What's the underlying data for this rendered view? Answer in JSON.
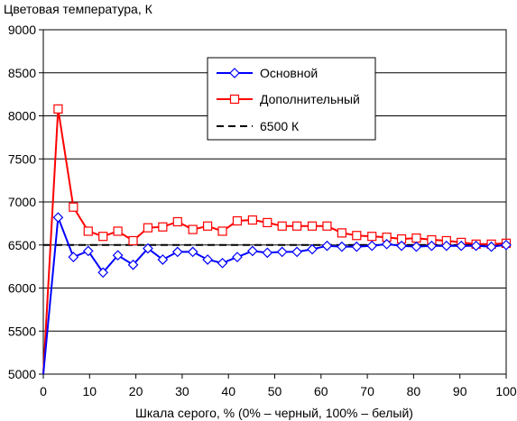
{
  "chart_data": {
    "type": "line",
    "title": "Цветовая температура, К",
    "xlabel": "Шкала серого, % (0% – черный, 100% – белый)",
    "ylabel": "",
    "xlim": [
      0,
      100
    ],
    "ylim": [
      5000,
      9000
    ],
    "x_ticks": [
      0,
      10,
      20,
      30,
      40,
      50,
      60,
      70,
      80,
      90,
      100
    ],
    "y_ticks": [
      5000,
      5500,
      6000,
      6500,
      7000,
      7500,
      8000,
      8500,
      9000
    ],
    "x_tick_labels": [
      "0",
      "10",
      "20",
      "30",
      "40",
      "50",
      "60",
      "70",
      "80",
      "90",
      "100"
    ],
    "y_tick_labels": [
      "5000",
      "5500",
      "6000",
      "6500",
      "7000",
      "7500",
      "8000",
      "8500",
      "9000"
    ],
    "grid": "horizontal",
    "legend_position": "top-right",
    "series": [
      {
        "name": "Основной",
        "color": "#0000ff",
        "marker": "diamond",
        "x": [
          0,
          3.2,
          6.5,
          9.7,
          12.9,
          16.1,
          19.4,
          22.6,
          25.8,
          29.0,
          32.3,
          35.5,
          38.7,
          41.9,
          45.2,
          48.4,
          51.6,
          54.8,
          58.1,
          61.3,
          64.5,
          67.7,
          71.0,
          74.2,
          77.4,
          80.6,
          83.9,
          87.1,
          90.3,
          93.5,
          96.8,
          100
        ],
        "values": [
          5000,
          6820,
          6360,
          6430,
          6180,
          6380,
          6270,
          6460,
          6330,
          6420,
          6420,
          6330,
          6290,
          6360,
          6430,
          6410,
          6420,
          6420,
          6450,
          6490,
          6480,
          6480,
          6490,
          6510,
          6490,
          6480,
          6490,
          6490,
          6490,
          6490,
          6480,
          6500
        ]
      },
      {
        "name": "Дополнительный",
        "color": "#ff0000",
        "marker": "square",
        "x": [
          0,
          3.2,
          6.5,
          9.7,
          12.9,
          16.1,
          19.4,
          22.6,
          25.8,
          29.0,
          32.3,
          35.5,
          38.7,
          41.9,
          45.2,
          48.4,
          51.6,
          54.8,
          58.1,
          61.3,
          64.5,
          67.7,
          71.0,
          74.2,
          77.4,
          80.6,
          83.9,
          87.1,
          90.3,
          93.5,
          96.8,
          100
        ],
        "values": [
          5000,
          8080,
          6940,
          6660,
          6600,
          6660,
          6550,
          6700,
          6710,
          6770,
          6680,
          6720,
          6660,
          6780,
          6790,
          6760,
          6720,
          6720,
          6720,
          6720,
          6640,
          6610,
          6600,
          6590,
          6570,
          6580,
          6560,
          6550,
          6530,
          6510,
          6510,
          6520
        ]
      },
      {
        "name": "6500 К",
        "color": "#000000",
        "style": "dashed",
        "x": [
          0,
          100
        ],
        "values": [
          6500,
          6500
        ]
      }
    ]
  }
}
